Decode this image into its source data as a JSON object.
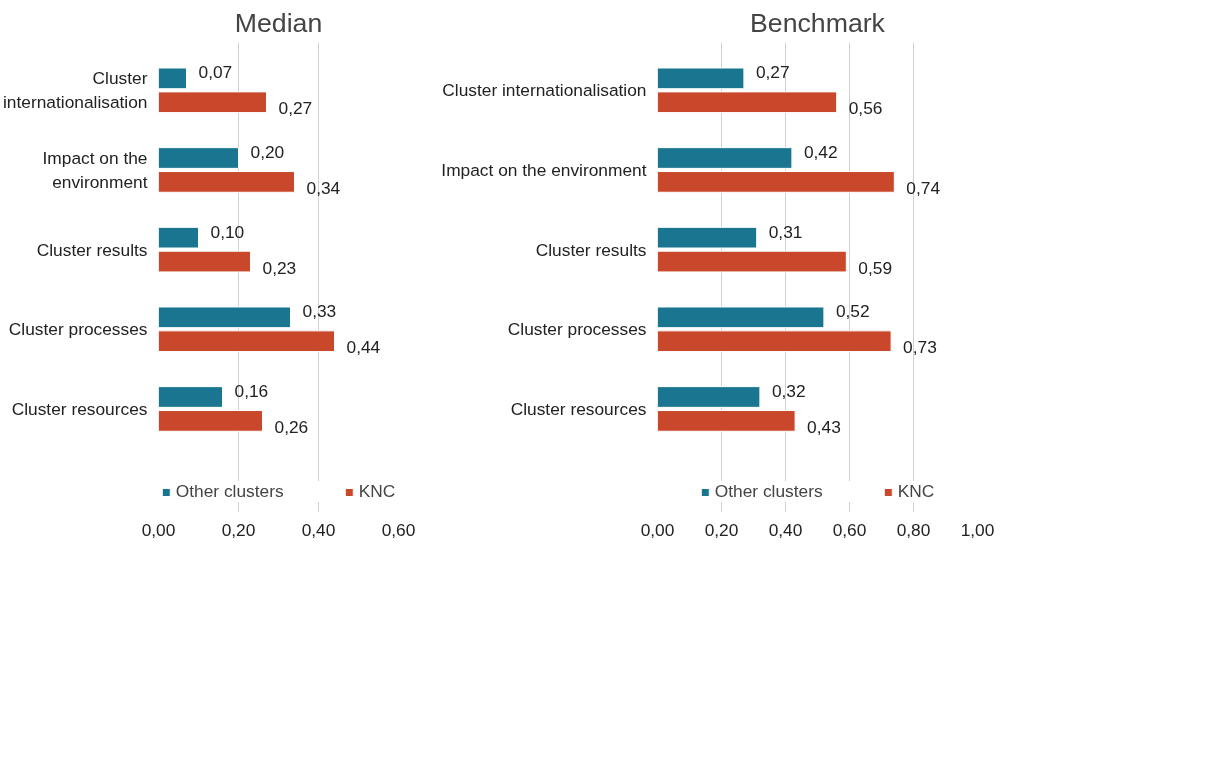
{
  "chart_data": [
    {
      "type": "bar",
      "orientation": "horizontal",
      "title": "Median",
      "categories": [
        "Cluster internationalisation",
        "Impact on the environment",
        "Cluster results",
        "Cluster processes",
        "Cluster resources"
      ],
      "series": [
        {
          "name": "Other clusters",
          "color": "#1a7590",
          "values": [
            0.07,
            0.2,
            0.1,
            0.33,
            0.16
          ],
          "value_labels": [
            "0,07",
            "0,20",
            "0,10",
            "0,33",
            "0,16"
          ]
        },
        {
          "name": "KNC",
          "color": "#c9472a",
          "values": [
            0.27,
            0.34,
            0.23,
            0.44,
            0.26
          ],
          "value_labels": [
            "0,27",
            "0,34",
            "0,23",
            "0,44",
            "0,26"
          ]
        }
      ],
      "xlim": [
        0,
        0.6
      ],
      "xticks": [
        {
          "value": 0,
          "label": "0,00"
        },
        {
          "value": 0.2,
          "label": "0,20"
        },
        {
          "value": 0.4,
          "label": "0,40"
        },
        {
          "value": 0.6,
          "label": "0,60"
        }
      ],
      "grid": "x",
      "legend": "bottom"
    },
    {
      "type": "bar",
      "orientation": "horizontal",
      "title": "Benchmark",
      "categories": [
        "Cluster internationalisation",
        "Impact on the environment",
        "Cluster results",
        "Cluster processes",
        "Cluster resources"
      ],
      "series": [
        {
          "name": "Other clusters",
          "color": "#1a7590",
          "values": [
            0.27,
            0.42,
            0.31,
            0.52,
            0.32
          ],
          "value_labels": [
            "0,27",
            "0,42",
            "0,31",
            "0,52",
            "0,32"
          ]
        },
        {
          "name": "KNC",
          "color": "#c9472a",
          "values": [
            0.56,
            0.74,
            0.59,
            0.73,
            0.43
          ],
          "value_labels": [
            "0,56",
            "0,74",
            "0,59",
            "0,73",
            "0,43"
          ]
        }
      ],
      "xlim": [
        0,
        1.0
      ],
      "xticks": [
        {
          "value": 0,
          "label": "0,00"
        },
        {
          "value": 0.2,
          "label": "0,20"
        },
        {
          "value": 0.4,
          "label": "0,40"
        },
        {
          "value": 0.6,
          "label": "0,60"
        },
        {
          "value": 0.8,
          "label": "0,80"
        },
        {
          "value": 1.0,
          "label": "1,00"
        }
      ],
      "grid": "x",
      "legend": "bottom"
    }
  ]
}
